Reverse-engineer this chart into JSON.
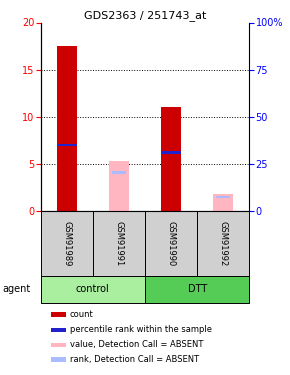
{
  "title": "GDS2363 / 251743_at",
  "samples": [
    "GSM91989",
    "GSM91991",
    "GSM91990",
    "GSM91992"
  ],
  "groups": [
    "control",
    "control",
    "DTT",
    "DTT"
  ],
  "bar_data": [
    {
      "count": 17.5,
      "rank": 7.0,
      "absent_value": null,
      "absent_rank": null,
      "is_absent": false
    },
    {
      "count": null,
      "rank": null,
      "absent_value": 5.3,
      "absent_rank": 4.1,
      "is_absent": true
    },
    {
      "count": 11.0,
      "rank": 6.2,
      "absent_value": null,
      "absent_rank": null,
      "is_absent": false
    },
    {
      "count": null,
      "rank": null,
      "absent_value": 1.8,
      "absent_rank": 1.55,
      "is_absent": true
    }
  ],
  "ylim": [
    0,
    20
  ],
  "yticks_left": [
    0,
    5,
    10,
    15,
    20
  ],
  "yticks_right_vals": [
    0,
    25,
    50,
    75,
    100
  ],
  "bar_width": 0.38,
  "count_color": "#CC0000",
  "rank_color": "#2222CC",
  "absent_value_color": "#FFB6C1",
  "absent_rank_color": "#AABBFF",
  "bg_color": "#FFFFFF",
  "sample_bg_color": "#D0D0D0",
  "control_color": "#AAEEA0",
  "dtt_color": "#55CC55",
  "legend_items": [
    {
      "label": "count",
      "color": "#CC0000"
    },
    {
      "label": "percentile rank within the sample",
      "color": "#2222CC"
    },
    {
      "label": "value, Detection Call = ABSENT",
      "color": "#FFB6C1"
    },
    {
      "label": "rank, Detection Call = ABSENT",
      "color": "#AABBFF"
    }
  ]
}
